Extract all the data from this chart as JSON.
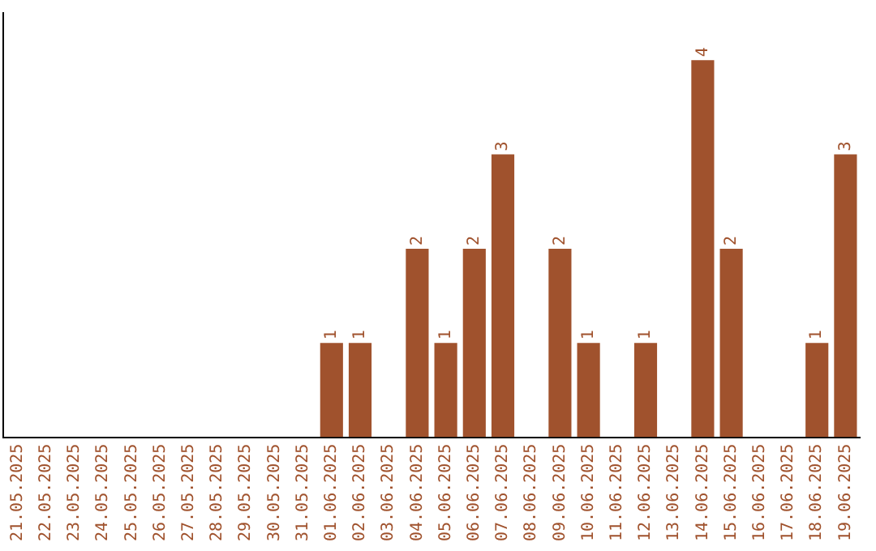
{
  "chart_data": {
    "type": "bar",
    "categories": [
      "21.05.2025",
      "22.05.2025",
      "23.05.2025",
      "24.05.2025",
      "25.05.2025",
      "26.05.2025",
      "27.05.2025",
      "28.05.2025",
      "29.05.2025",
      "30.05.2025",
      "31.05.2025",
      "01.06.2025",
      "02.06.2025",
      "03.06.2025",
      "04.06.2025",
      "05.06.2025",
      "06.06.2025",
      "07.06.2025",
      "08.06.2025",
      "09.06.2025",
      "10.06.2025",
      "11.06.2025",
      "12.06.2025",
      "13.06.2025",
      "14.06.2025",
      "15.06.2025",
      "16.06.2025",
      "17.06.2025",
      "18.06.2025",
      "19.06.2025"
    ],
    "values": [
      0,
      0,
      0,
      0,
      0,
      0,
      0,
      0,
      0,
      0,
      0,
      1,
      1,
      0,
      2,
      1,
      2,
      3,
      0,
      2,
      1,
      0,
      1,
      0,
      4,
      2,
      0,
      0,
      1,
      3
    ],
    "value_labels": [
      null,
      null,
      null,
      null,
      null,
      null,
      null,
      null,
      null,
      null,
      null,
      "1",
      "1",
      null,
      "2",
      "1",
      "2",
      "3",
      null,
      "2",
      "1",
      null,
      "1",
      null,
      "4",
      "2",
      null,
      null,
      "1",
      "3"
    ],
    "color": "#a0522d",
    "grid": false,
    "legend": false,
    "tick_labels": "x"
  }
}
